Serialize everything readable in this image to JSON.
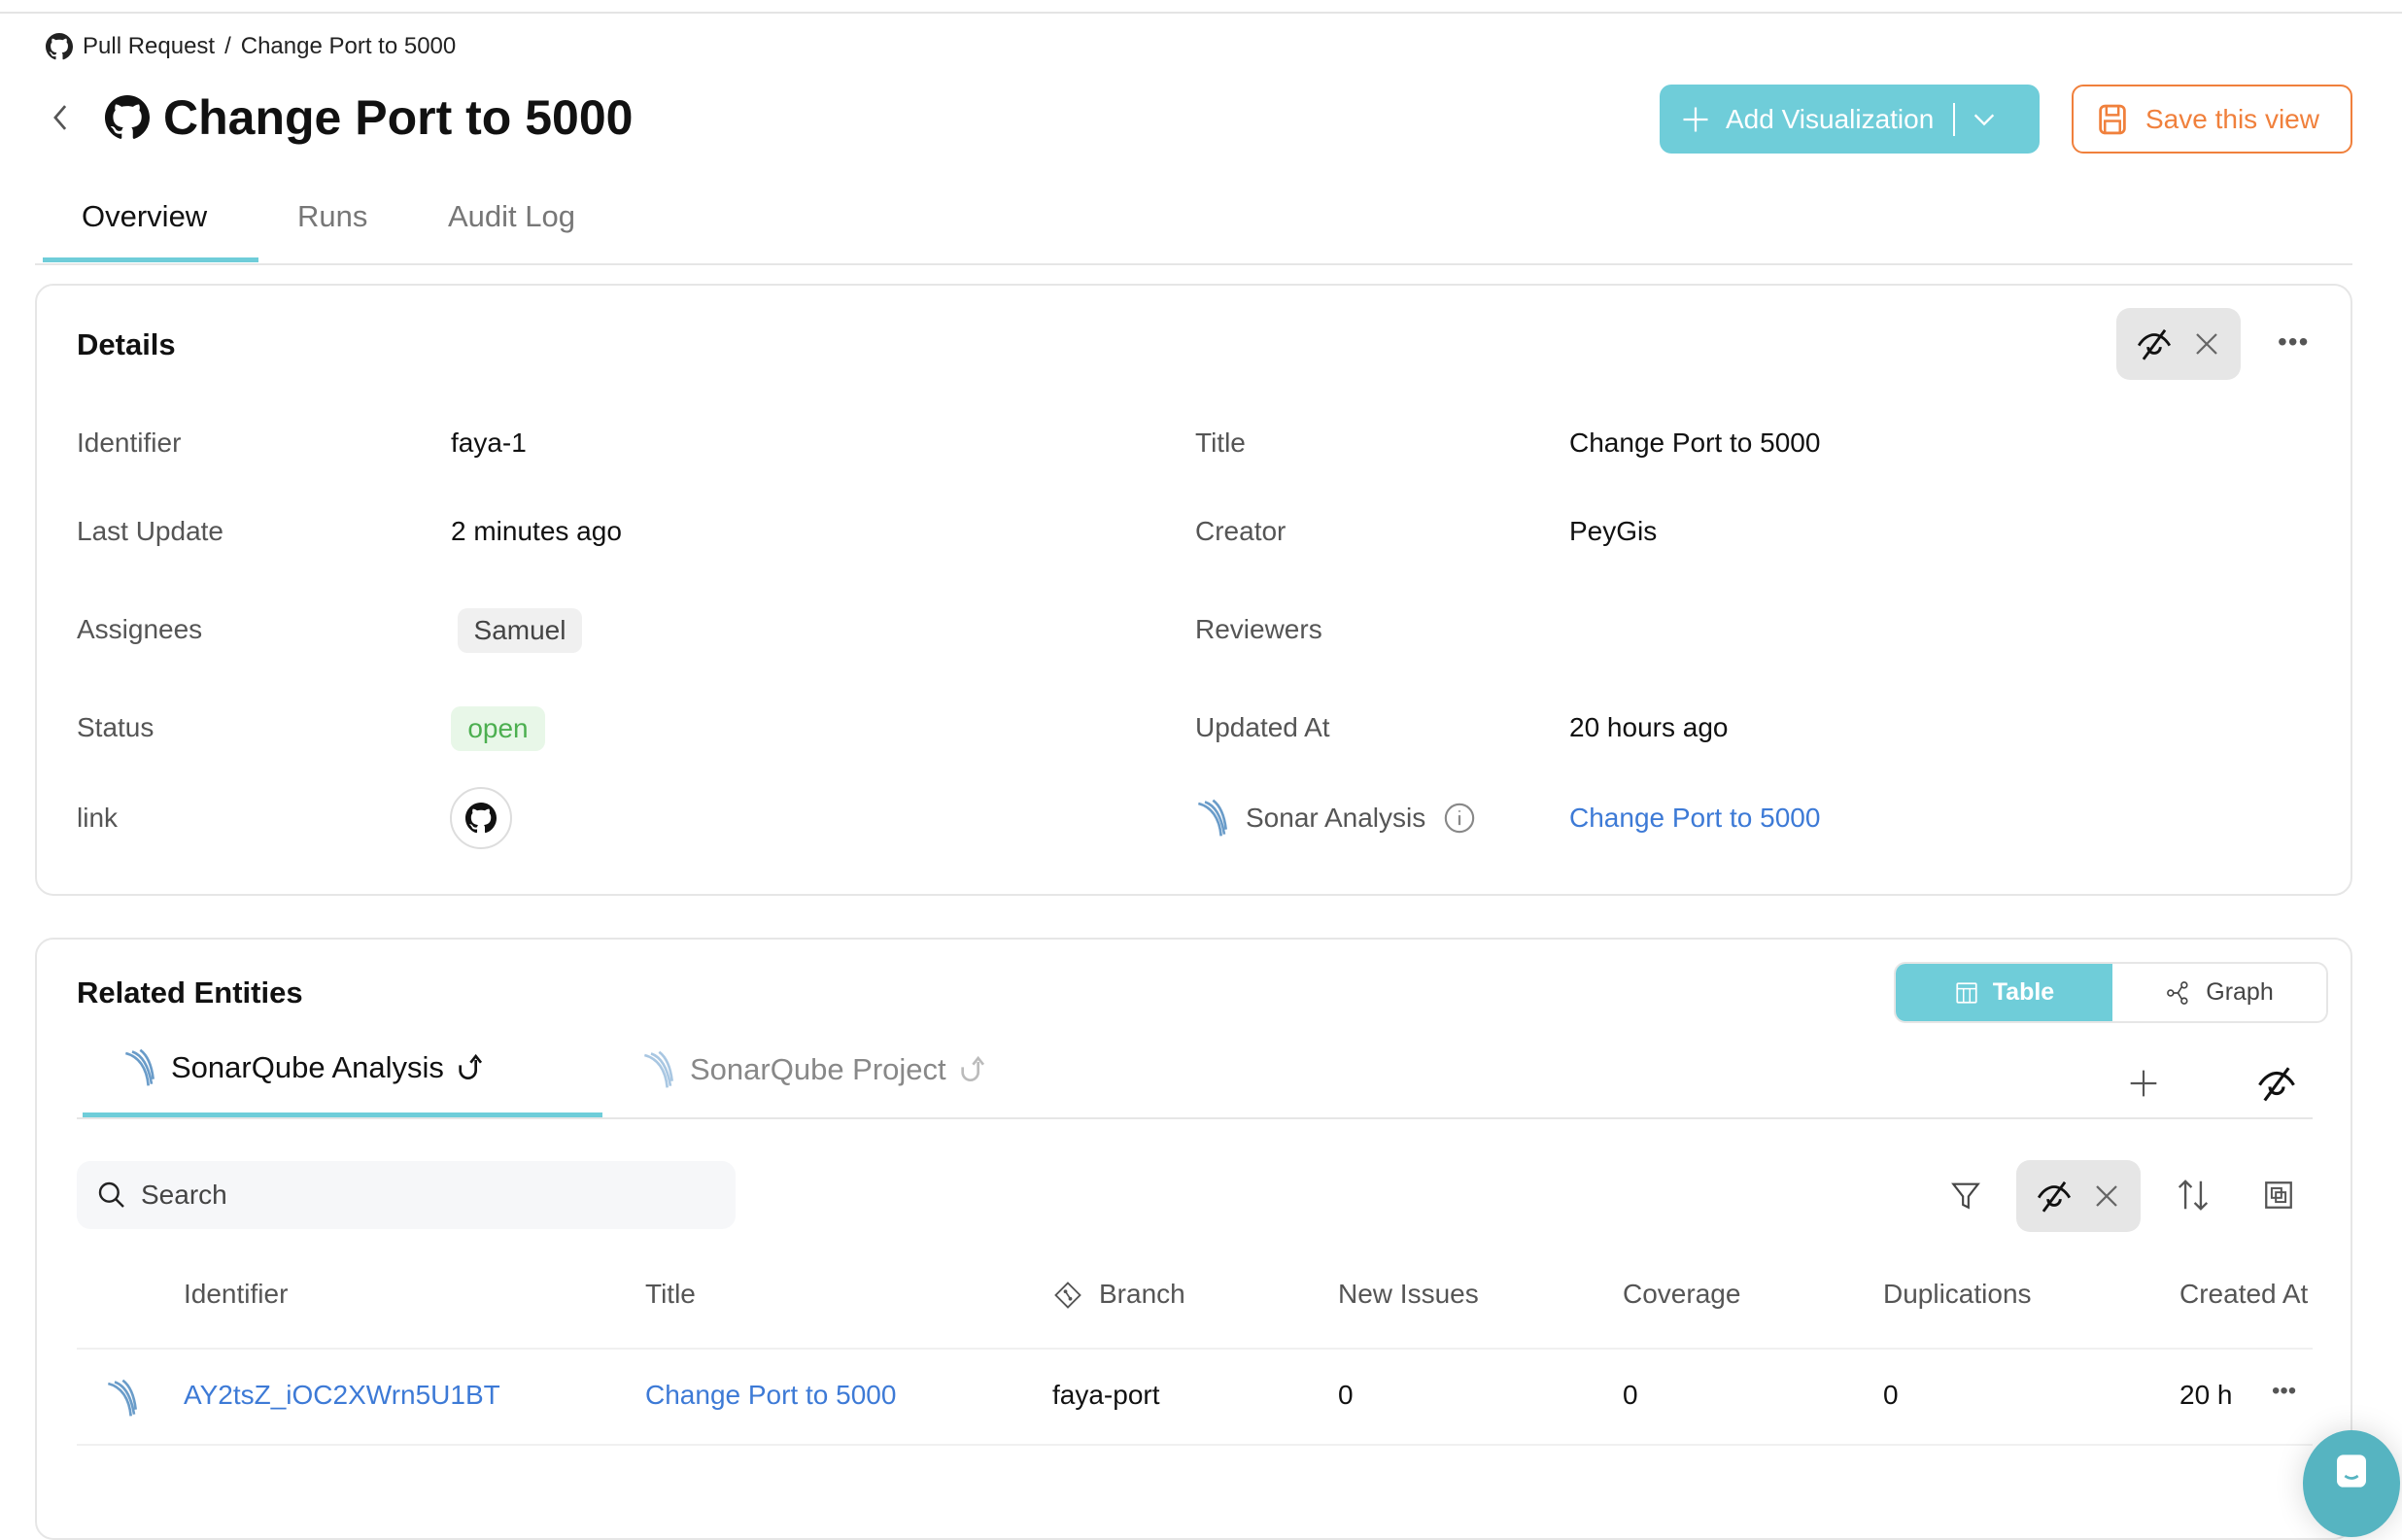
{
  "breadcrumb": {
    "parent": "Pull Request",
    "separator": "/",
    "current": "Change Port to 5000"
  },
  "header": {
    "title": "Change Port to 5000",
    "add_visualization": "Add Visualization",
    "save_view": "Save this view"
  },
  "tabs": [
    {
      "label": "Overview",
      "active": true
    },
    {
      "label": "Runs"
    },
    {
      "label": "Audit Log"
    }
  ],
  "details": {
    "title": "Details",
    "left": [
      {
        "label": "Identifier",
        "value": "faya-1"
      },
      {
        "label": "Last Update",
        "value": "2 minutes ago"
      },
      {
        "label": "Assignees",
        "value": "Samuel"
      },
      {
        "label": "Status",
        "value": "open"
      },
      {
        "label": "link",
        "value": ""
      }
    ],
    "right": [
      {
        "label": "Title",
        "value": "Change Port to 5000"
      },
      {
        "label": "Creator",
        "value": "PeyGis"
      },
      {
        "label": "Reviewers",
        "value": ""
      },
      {
        "label": "Updated At",
        "value": "20 hours ago"
      },
      {
        "label": "Sonar Analysis",
        "value": "Change Port to 5000"
      }
    ]
  },
  "related": {
    "title": "Related Entities",
    "view_toggle": {
      "table": "Table",
      "graph": "Graph",
      "selected": "Table"
    },
    "tabs": [
      {
        "label": "SonarQube Analysis",
        "active": true
      },
      {
        "label": "SonarQube Project"
      }
    ],
    "search_placeholder": "Search",
    "columns": [
      "Identifier",
      "Title",
      "Branch",
      "New Issues",
      "Coverage",
      "Duplications",
      "Created At"
    ],
    "rows": [
      {
        "identifier": "AY2tsZ_iOC2XWrn5U1BT",
        "title": "Change Port to 5000",
        "branch": "faya-port",
        "new_issues": "0",
        "coverage": "0",
        "duplications": "0",
        "created_at": "20 h"
      }
    ]
  },
  "colors": {
    "accent": "#6fcdd9",
    "save": "#f0803c",
    "link": "#3d7ad6",
    "status_open": "#4caf50"
  }
}
